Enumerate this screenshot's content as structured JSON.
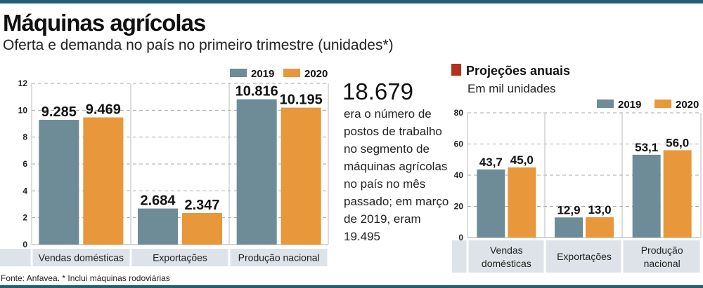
{
  "header": {
    "title": "Máquinas agrícolas",
    "subtitle": "Oferta e demanda no país no primeiro trimestre (unidades*)"
  },
  "highlight": {
    "number": "18.679",
    "text": "era o número de postos de trabalho no segmento de máquinas agrícolas no país no mês passado; em março de 2019, eram 19.495"
  },
  "footer": {
    "source": "Fonte: Anfavea. * Inclui máquinas rodoviárias"
  },
  "colors": {
    "2019": "#6e8b98",
    "2020": "#e8973a",
    "accent": "#1f5f7a",
    "marker": "#b5301f"
  },
  "chart_data": [
    {
      "type": "bar",
      "title": "",
      "ylim": [
        0,
        12
      ],
      "yticks": [
        "0",
        "2",
        "4",
        "6",
        "8",
        "10",
        "12"
      ],
      "grid": true,
      "legend": "top-right",
      "categories": [
        "Vendas domésticas",
        "Exportações",
        "Produção nacional"
      ],
      "series": [
        {
          "name": "2019",
          "values": [
            9285,
            2684,
            10816
          ],
          "labels": [
            "9.285",
            "2.684",
            "10.816"
          ]
        },
        {
          "name": "2020",
          "values": [
            9469,
            2347,
            10195
          ],
          "labels": [
            "9.469",
            "2.347",
            "10.195"
          ]
        }
      ]
    },
    {
      "type": "bar",
      "title": "Projeções anuais",
      "subtitle": "Em mil unidades",
      "ylim": [
        0,
        80
      ],
      "yticks": [
        "0",
        "20",
        "40",
        "60",
        "80"
      ],
      "grid": true,
      "legend": "top-right",
      "categories": [
        "Vendas domésticas",
        "Exportações",
        "Produção nacional"
      ],
      "series": [
        {
          "name": "2019",
          "values": [
            43.7,
            12.9,
            53.1
          ],
          "labels": [
            "43,7",
            "12,9",
            "53,1"
          ]
        },
        {
          "name": "2020",
          "values": [
            45.0,
            13.0,
            56.0
          ],
          "labels": [
            "45,0",
            "13,0",
            "56,0"
          ]
        }
      ]
    }
  ]
}
